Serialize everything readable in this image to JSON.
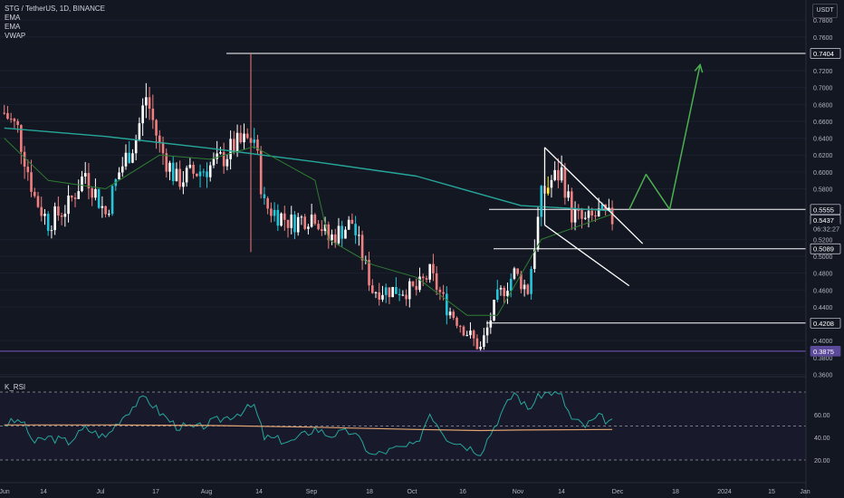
{
  "header": {
    "symbol_line": "STG / TetherUS, 1D, BINANCE",
    "indicators": [
      "EMA",
      "EMA",
      "VWAP"
    ],
    "currency_button": "USDT"
  },
  "rsi_panel": {
    "label": "K_RSI",
    "ticks": [
      "60.00",
      "40.00",
      "20.00"
    ]
  },
  "price_axis": {
    "ticks": [
      "0.7800",
      "0.7600",
      "0.7200",
      "0.7000",
      "0.6800",
      "0.6600",
      "0.6400",
      "0.6200",
      "0.6000",
      "0.5800",
      "0.5200",
      "0.5000",
      "0.4800",
      "0.4600",
      "0.4400",
      "0.4000",
      "0.3800",
      "0.3600"
    ],
    "labels": [
      {
        "text": "0.7404",
        "price": 0.7404,
        "style": "dark"
      },
      {
        "text": "0.5555",
        "price": 0.5555,
        "style": "dark"
      },
      {
        "text": "0.5437",
        "price": 0.5437,
        "style": "price"
      },
      {
        "text": "06:32:27",
        "price": 0.5437,
        "style": "timer"
      },
      {
        "text": "0.5089",
        "price": 0.5089,
        "style": "dark"
      },
      {
        "text": "0.4208",
        "price": 0.4208,
        "style": "dark"
      },
      {
        "text": "0.3875",
        "price": 0.3875,
        "style": "purple"
      }
    ]
  },
  "time_axis": [
    "Jun",
    "14",
    "Jul",
    "17",
    "Aug",
    "14",
    "Sep",
    "18",
    "Oct",
    "16",
    "Nov",
    "14",
    "Dec",
    "18",
    "2024",
    "15",
    "Jan"
  ],
  "colors": {
    "background": "#131722",
    "up": "#ffffff",
    "down": "#f08080",
    "highlight_up": "#26c6da",
    "highlight_hold": "#ffeb3b",
    "ema_long": "#26a69a",
    "ema_short": "#2e7d32",
    "projection": "#4caf50",
    "support": "#7e57c2",
    "rsi": "#26a69a",
    "rsi_ma": "#e0a370"
  },
  "chart_data": {
    "type": "candlestick",
    "symbol": "STG / TetherUS",
    "interval": "1D",
    "exchange": "BINANCE",
    "y_range": [
      0.35,
      0.79
    ],
    "anchor_points": [
      {
        "date": "Jun 1",
        "price": 0.67
      },
      {
        "date": "Jun 5",
        "price": 0.65
      },
      {
        "date": "Jun 10",
        "price": 0.57
      },
      {
        "date": "Jun 14",
        "price": 0.54
      },
      {
        "date": "Jun 20",
        "price": 0.56
      },
      {
        "date": "Jun 25",
        "price": 0.6
      },
      {
        "date": "Jul 1",
        "price": 0.55
      },
      {
        "date": "Jul 5",
        "price": 0.6
      },
      {
        "date": "Jul 10",
        "price": 0.64
      },
      {
        "date": "Jul 13",
        "price": 0.69
      },
      {
        "date": "Jul 17",
        "price": 0.63
      },
      {
        "date": "Jul 22",
        "price": 0.59
      },
      {
        "date": "Jul 28",
        "price": 0.6
      },
      {
        "date": "Aug 3",
        "price": 0.61
      },
      {
        "date": "Aug 8",
        "price": 0.63
      },
      {
        "date": "Aug 14",
        "price": 0.64
      },
      {
        "date": "Aug 17",
        "price": 0.56
      },
      {
        "date": "Aug 25",
        "price": 0.54
      },
      {
        "date": "Sep 1",
        "price": 0.55
      },
      {
        "date": "Sep 5",
        "price": 0.52
      },
      {
        "date": "Sep 12",
        "price": 0.54
      },
      {
        "date": "Sep 18",
        "price": 0.46
      },
      {
        "date": "Sep 25",
        "price": 0.46
      },
      {
        "date": "Oct 1",
        "price": 0.46
      },
      {
        "date": "Oct 5",
        "price": 0.48
      },
      {
        "date": "Oct 10",
        "price": 0.44
      },
      {
        "date": "Oct 16",
        "price": 0.41
      },
      {
        "date": "Oct 20",
        "price": 0.39
      },
      {
        "date": "Oct 25",
        "price": 0.45
      },
      {
        "date": "Oct 30",
        "price": 0.48
      },
      {
        "date": "Nov 3",
        "price": 0.46
      },
      {
        "date": "Nov 7",
        "price": 0.57
      },
      {
        "date": "Nov 10",
        "price": 0.59
      },
      {
        "date": "Nov 13",
        "price": 0.6
      },
      {
        "date": "Nov 16",
        "price": 0.55
      },
      {
        "date": "Nov 20",
        "price": 0.54
      },
      {
        "date": "Nov 24",
        "price": 0.55
      },
      {
        "date": "Nov 28",
        "price": 0.5437
      }
    ],
    "ema_long": [
      {
        "date": "Jun 1",
        "price": 0.652
      },
      {
        "date": "Jul 1",
        "price": 0.642
      },
      {
        "date": "Aug 1",
        "price": 0.628
      },
      {
        "date": "Sep 1",
        "price": 0.612
      },
      {
        "date": "Oct 1",
        "price": 0.595
      },
      {
        "date": "Nov 1",
        "price": 0.56
      },
      {
        "date": "Nov 28",
        "price": 0.554
      }
    ],
    "ema_short": [
      {
        "date": "Jun 1",
        "price": 0.64
      },
      {
        "date": "Jun 14",
        "price": 0.59
      },
      {
        "date": "Jul 1",
        "price": 0.58
      },
      {
        "date": "Jul 17",
        "price": 0.62
      },
      {
        "date": "Aug 1",
        "price": 0.615
      },
      {
        "date": "Aug 14",
        "price": 0.63
      },
      {
        "date": "Sep 1",
        "price": 0.59
      },
      {
        "date": "Sep 5",
        "price": 0.52
      },
      {
        "date": "Sep 18",
        "price": 0.49
      },
      {
        "date": "Oct 1",
        "price": 0.475
      },
      {
        "date": "Oct 16",
        "price": 0.43
      },
      {
        "date": "Oct 25",
        "price": 0.43
      },
      {
        "date": "Nov 7",
        "price": 0.52
      },
      {
        "date": "Nov 28",
        "price": 0.55
      }
    ],
    "horizontal_levels": [
      0.7404,
      0.5555,
      0.5089,
      0.4208,
      0.3875
    ],
    "projection_path": [
      {
        "date": "Dec 3",
        "price": 0.5555
      },
      {
        "date": "Dec 8",
        "price": 0.597
      },
      {
        "date": "Dec 15",
        "price": 0.5555
      },
      {
        "date": "Dec 24",
        "price": 0.727
      }
    ],
    "channel": {
      "upper": [
        {
          "date": "Nov 8",
          "price": 0.629
        },
        {
          "date": "Dec 7",
          "price": 0.515
        }
      ],
      "lower": [
        {
          "date": "Nov 8",
          "price": 0.537
        },
        {
          "date": "Dec 3",
          "price": 0.465
        }
      ]
    },
    "rsi": {
      "label": "K_RSI",
      "levels": [
        80,
        50,
        20
      ],
      "y_range": [
        17,
        86
      ],
      "anchor_points": [
        {
          "date": "Jun 1",
          "value": 52
        },
        {
          "date": "Jun 6",
          "value": 55
        },
        {
          "date": "Jun 10",
          "value": 35
        },
        {
          "date": "Jun 14",
          "value": 40
        },
        {
          "date": "Jun 20",
          "value": 36
        },
        {
          "date": "Jun 25",
          "value": 48
        },
        {
          "date": "Jul 1",
          "value": 40
        },
        {
          "date": "Jul 5",
          "value": 55
        },
        {
          "date": "Jul 10",
          "value": 70
        },
        {
          "date": "Jul 13",
          "value": 75
        },
        {
          "date": "Jul 17",
          "value": 62
        },
        {
          "date": "Jul 22",
          "value": 50
        },
        {
          "date": "Jul 28",
          "value": 48
        },
        {
          "date": "Aug 3",
          "value": 55
        },
        {
          "date": "Aug 8",
          "value": 60
        },
        {
          "date": "Aug 14",
          "value": 68
        },
        {
          "date": "Aug 17",
          "value": 40
        },
        {
          "date": "Aug 25",
          "value": 36
        },
        {
          "date": "Sep 1",
          "value": 48
        },
        {
          "date": "Sep 5",
          "value": 42
        },
        {
          "date": "Sep 12",
          "value": 45
        },
        {
          "date": "Sep 18",
          "value": 24
        },
        {
          "date": "Sep 25",
          "value": 30
        },
        {
          "date": "Oct 1",
          "value": 33
        },
        {
          "date": "Oct 5",
          "value": 62
        },
        {
          "date": "Oct 10",
          "value": 40
        },
        {
          "date": "Oct 16",
          "value": 32
        },
        {
          "date": "Oct 20",
          "value": 27
        },
        {
          "date": "Oct 25",
          "value": 55
        },
        {
          "date": "Oct 30",
          "value": 80
        },
        {
          "date": "Nov 3",
          "value": 65
        },
        {
          "date": "Nov 7",
          "value": 78
        },
        {
          "date": "Nov 10",
          "value": 80
        },
        {
          "date": "Nov 13",
          "value": 76
        },
        {
          "date": "Nov 16",
          "value": 56
        },
        {
          "date": "Nov 20",
          "value": 50
        },
        {
          "date": "Nov 24",
          "value": 58
        },
        {
          "date": "Nov 28",
          "value": 53
        }
      ],
      "ma_anchor_points": [
        {
          "date": "Jun 1",
          "value": 51
        },
        {
          "date": "Jul 1",
          "value": 51
        },
        {
          "date": "Aug 1",
          "value": 50.5
        },
        {
          "date": "Sep 1",
          "value": 49
        },
        {
          "date": "Oct 1",
          "value": 47
        },
        {
          "date": "Oct 20",
          "value": 46
        },
        {
          "date": "Nov 1",
          "value": 46.5
        },
        {
          "date": "Nov 28",
          "value": 47
        }
      ]
    }
  }
}
